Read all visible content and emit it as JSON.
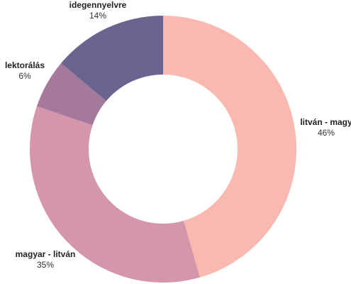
{
  "chart_data": {
    "type": "pie",
    "donut": true,
    "categories": [
      "litván - magy",
      "magyar - litván",
      "lektorálás",
      "idegennyelvre"
    ],
    "values": [
      46,
      35,
      6,
      14
    ],
    "value_labels": [
      "46%",
      "35%",
      "6%",
      "14%"
    ],
    "colors": [
      "#f9b9b1",
      "#d496ab",
      "#a5799c",
      "#6b6490"
    ],
    "title": "",
    "legend": "none"
  }
}
